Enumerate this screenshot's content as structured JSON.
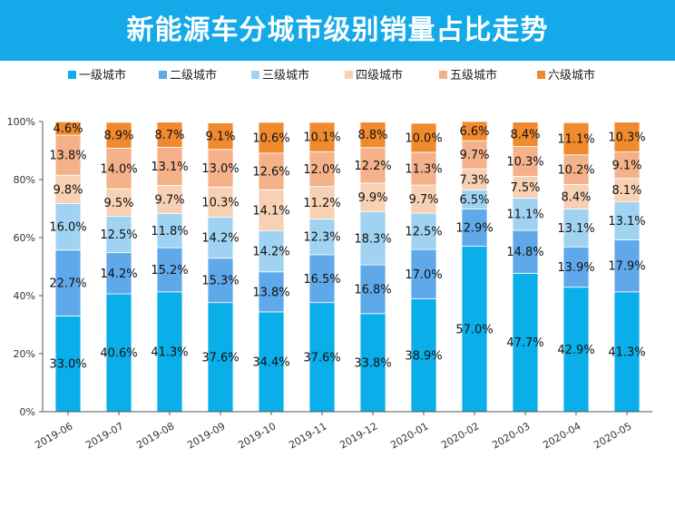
{
  "header": {
    "title": "新能源车分城市级别销量占比走势"
  },
  "chart_data": {
    "type": "bar",
    "stacked": true,
    "title": "新能源车分城市级别销量占比走势",
    "xlabel": "",
    "ylabel": "",
    "ylim": [
      0,
      100
    ],
    "y_tick_labels": [
      "0%",
      "20%",
      "40%",
      "60%",
      "80%",
      "100%"
    ],
    "legend_position": "top",
    "grid": false,
    "categories": [
      "2019-06",
      "2019-07",
      "2019-08",
      "2019-09",
      "2019-10",
      "2019-11",
      "2019-12",
      "2020-01",
      "2020-02",
      "2020-03",
      "2020-04",
      "2020-05"
    ],
    "series": [
      {
        "name": "一级城市",
        "color": "#0aaee8",
        "values": [
          33.0,
          40.6,
          41.3,
          37.6,
          34.4,
          37.6,
          33.8,
          38.9,
          57.0,
          47.7,
          42.9,
          41.3
        ],
        "labels": [
          "33.0%",
          "40.6%",
          "41.3%",
          "37.6%",
          "34.4%",
          "37.6%",
          "33.8%",
          "38.9%",
          "57.0%",
          "47.7%",
          "42.9%",
          "41.3%"
        ]
      },
      {
        "name": "二级城市",
        "color": "#5fa9ea",
        "values": [
          22.7,
          14.2,
          15.2,
          15.3,
          13.8,
          16.5,
          16.8,
          17.0,
          12.9,
          14.8,
          13.9,
          17.9
        ],
        "labels": [
          "22.7%",
          "14.2%",
          "15.2%",
          "15.3%",
          "13.8%",
          "16.5%",
          "16.8%",
          "17.0%",
          "12.9%",
          "14.8%",
          "13.9%",
          "17.9%"
        ]
      },
      {
        "name": "三级城市",
        "color": "#9fd3f1",
        "values": [
          16.0,
          12.5,
          11.8,
          14.2,
          14.2,
          12.3,
          18.3,
          12.5,
          6.5,
          11.1,
          13.1,
          13.1
        ],
        "labels": [
          "16.0%",
          "12.5%",
          "11.8%",
          "14.2%",
          "14.2%",
          "12.3%",
          "18.3%",
          "12.5%",
          "6.5%",
          "11.1%",
          "13.1%",
          "13.1%"
        ]
      },
      {
        "name": "四级城市",
        "color": "#f8d0b3",
        "values": [
          9.8,
          9.5,
          9.7,
          10.3,
          14.1,
          11.2,
          9.9,
          9.7,
          7.3,
          7.5,
          8.4,
          8.1
        ],
        "labels": [
          "9.8%",
          "9.5%",
          "9.7%",
          "10.3%",
          "14.1%",
          "11.2%",
          "9.9%",
          "9.7%",
          "7.3%",
          "7.5%",
          "8.4%",
          "8.1%"
        ]
      },
      {
        "name": "五级城市",
        "color": "#f5b189",
        "values": [
          13.8,
          14.0,
          13.1,
          13.0,
          12.6,
          12.0,
          12.2,
          11.3,
          9.7,
          10.3,
          10.2,
          9.1
        ],
        "labels": [
          "13.8%",
          "14.0%",
          "13.1%",
          "13.0%",
          "12.6%",
          "12.0%",
          "12.2%",
          "11.3%",
          "9.7%",
          "10.3%",
          "10.2%",
          "9.1%"
        ]
      },
      {
        "name": "六级城市",
        "color": "#f08a2e",
        "values": [
          4.6,
          8.9,
          8.7,
          9.1,
          10.6,
          10.1,
          8.8,
          10.0,
          6.6,
          8.4,
          11.1,
          10.3
        ],
        "labels": [
          "4.6%",
          "8.9%",
          "8.7%",
          "9.1%",
          "10.6%",
          "10.1%",
          "8.8%",
          "10.0%",
          "6.6%",
          "8.4%",
          "11.1%",
          "10.3%"
        ]
      }
    ]
  }
}
